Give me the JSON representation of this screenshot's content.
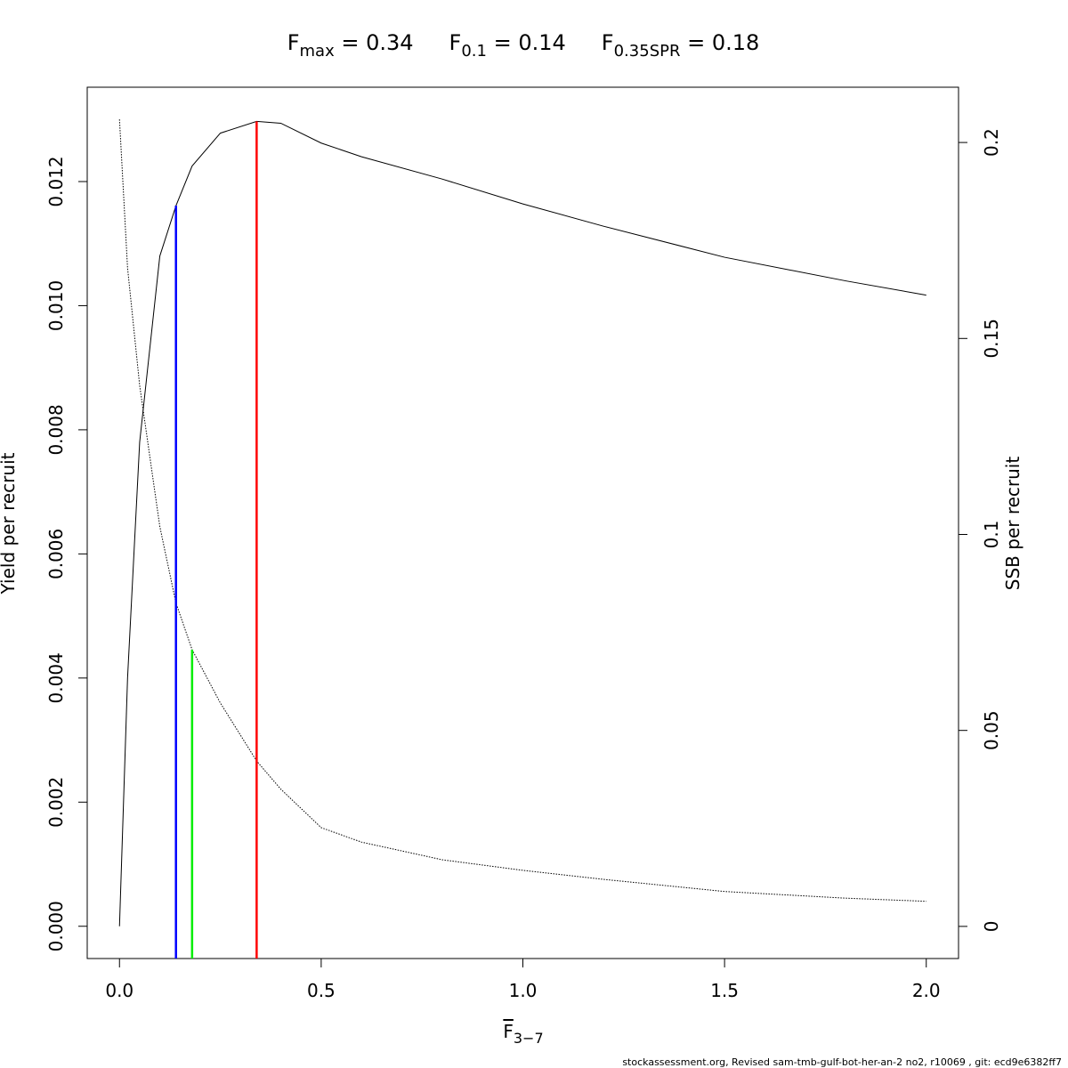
{
  "chart_data": {
    "type": "line",
    "title_parts": [
      {
        "base": "F",
        "sub": "max",
        "text": " = 0.34"
      },
      {
        "base": "F",
        "sub": "0.1",
        "text": " = 0.14"
      },
      {
        "base": "F",
        "sub": "0.35SPR",
        "text": " = 0.18"
      }
    ],
    "x_label": {
      "base": "F",
      "sub": "3−7"
    },
    "y_label": "Yield per recruit",
    "y2_label": "SSB per recruit",
    "x": [
      0,
      0.02,
      0.05,
      0.1,
      0.14,
      0.18,
      0.25,
      0.34,
      0.4,
      0.5,
      0.6,
      0.8,
      1.0,
      1.2,
      1.5,
      1.8,
      2.0
    ],
    "series": [
      {
        "name": "Yield per recruit",
        "color": "#000000",
        "dash": "solid",
        "axis": "y",
        "values": [
          0,
          0.004,
          0.0078,
          0.0108,
          0.01161,
          0.01225,
          0.01278,
          0.01297,
          0.01294,
          0.01262,
          0.0124,
          0.01204,
          0.01164,
          0.01128,
          0.01078,
          0.0104,
          0.01017
        ]
      },
      {
        "name": "SSB per recruit",
        "color": "#000000",
        "dash": "dotted",
        "axis": "y2",
        "values": [
          0.2059,
          0.168,
          0.138,
          0.102,
          0.0825,
          0.0706,
          0.057,
          0.0422,
          0.035,
          0.0252,
          0.0215,
          0.017,
          0.0143,
          0.012,
          0.0089,
          0.0072,
          0.0064
        ]
      }
    ],
    "vlines": [
      {
        "x": 0.34,
        "y": 0.01297,
        "axis": "y",
        "color": "#ff0000"
      },
      {
        "x": 0.14,
        "y": 0.01161,
        "axis": "y",
        "color": "#0000ff"
      },
      {
        "x": 0.18,
        "y": 0.0706,
        "axis": "y2",
        "color": "#00ee00"
      }
    ],
    "xlim": [
      -0.08,
      2.08
    ],
    "xticks": [
      {
        "value": 0,
        "label": "0.0"
      },
      0.5,
      {
        "value": 1,
        "label": "1.0"
      },
      1.5,
      {
        "value": 2,
        "label": "2.0"
      }
    ],
    "ylim": [
      -0.00052,
      0.01352
    ],
    "yticks": [
      {
        "value": 0,
        "label": "0.000"
      },
      {
        "value": 0.002,
        "label": "0.002"
      },
      {
        "value": 0.004,
        "label": "0.004"
      },
      {
        "value": 0.006,
        "label": "0.006"
      },
      {
        "value": 0.008,
        "label": "0.008"
      },
      {
        "value": 0.01,
        "label": "0.010"
      },
      {
        "value": 0.012,
        "label": "0.012"
      }
    ],
    "y2lim": [
      -0.0082,
      0.2141
    ],
    "y2ticks": [
      0,
      0.05,
      0.1,
      0.15,
      0.2
    ],
    "footer": "stockassessment.org, Revised  sam-tmb-gulf-bot-her-an-2  no2, r10069 , git: ecd9e6382ff7"
  }
}
